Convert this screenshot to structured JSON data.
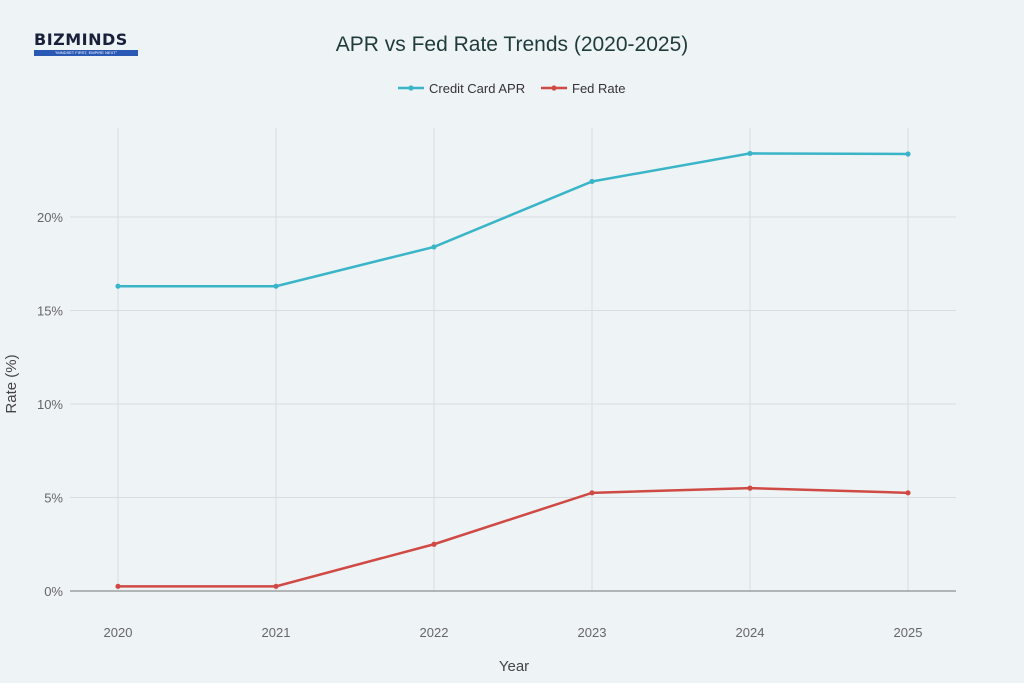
{
  "logo": {
    "text": "BIZMINDS",
    "tagline": "\"MINDSET FIRST, EMPIRE NEXT\""
  },
  "chart_data": {
    "type": "line",
    "title": "APR vs Fed Rate Trends (2020-2025)",
    "xlabel": "Year",
    "ylabel": "Rate (%)",
    "x": [
      "2020",
      "2021",
      "2022",
      "2023",
      "2024",
      "2025"
    ],
    "yticks": [
      "0%",
      "5%",
      "10%",
      "15%",
      "20%"
    ],
    "ytick_values": [
      0,
      5,
      10,
      15,
      20
    ],
    "ylim": [
      0,
      25
    ],
    "grid": true,
    "legend_position": "top-center",
    "series": [
      {
        "name": "Credit Card APR",
        "color": "#3ab5c8",
        "values": [
          16.3,
          16.3,
          18.4,
          21.9,
          23.4,
          23.37
        ]
      },
      {
        "name": "Fed Rate",
        "color": "#d04a45",
        "values": [
          0.25,
          0.25,
          2.5,
          5.25,
          5.5,
          5.25
        ]
      }
    ]
  }
}
